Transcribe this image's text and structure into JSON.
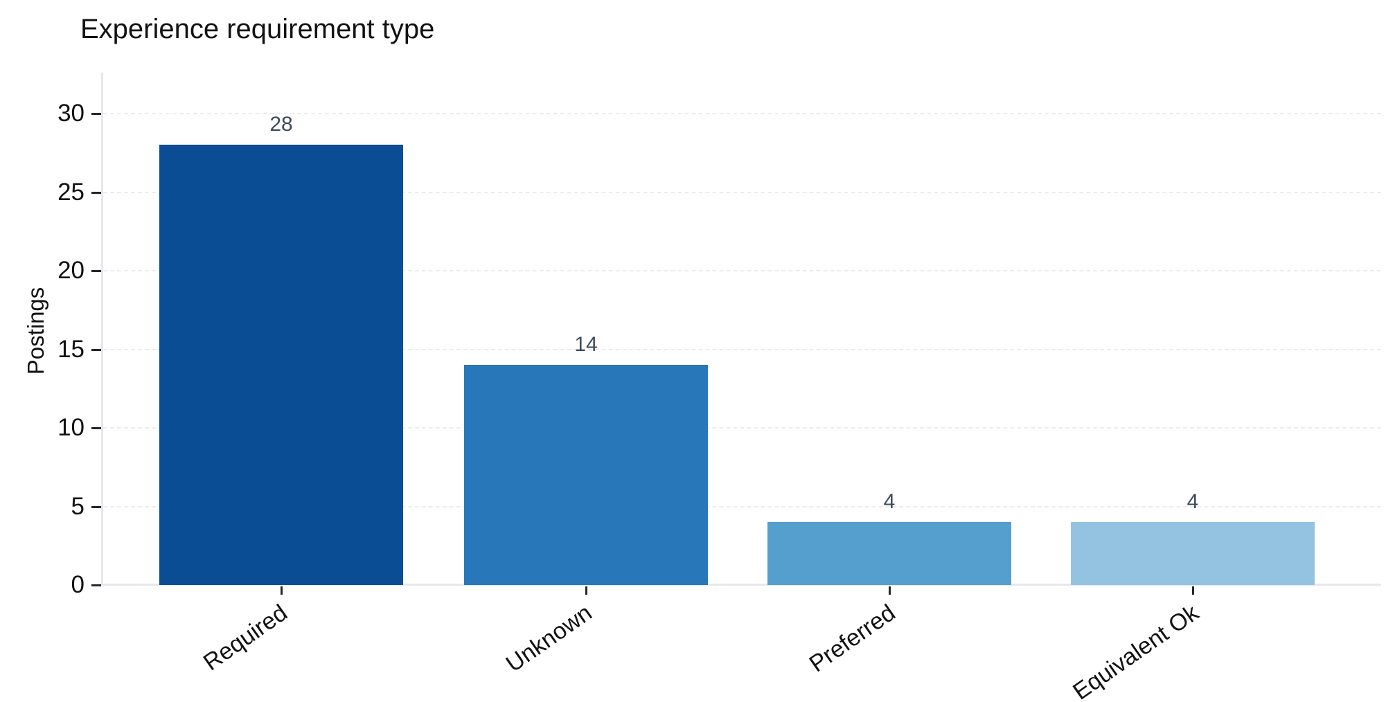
{
  "chart_data": {
    "type": "bar",
    "title": "Experience requirement type",
    "xlabel": "",
    "ylabel": "Postings",
    "categories": [
      "Required",
      "Unknown",
      "Preferred",
      "Equivalent Ok"
    ],
    "values": [
      28,
      14,
      4,
      4
    ],
    "value_labels": [
      "28",
      "14",
      "4",
      "4"
    ],
    "ylim": [
      0,
      32
    ],
    "yticks": [
      0,
      5,
      10,
      15,
      20,
      25,
      30
    ],
    "bar_colors": [
      "#0b4d94",
      "#2878b9",
      "#559fce",
      "#94c3e2"
    ],
    "value_label_color": "#3d4a5c",
    "grid": "horizontal-dashed",
    "gridline_color": "#ececec",
    "axis_line_color": "#e6e6ec",
    "text_color": "#121212",
    "legend": "none",
    "background": "#ffffff"
  }
}
